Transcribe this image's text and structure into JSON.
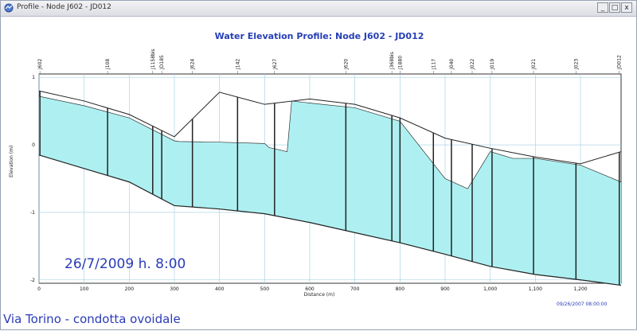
{
  "window": {
    "title": "Profile - Node J602 - JD012",
    "buttons": [
      "_",
      "□",
      "x"
    ]
  },
  "chart_data": {
    "type": "area",
    "title": "Water Elevation Profile:  Node J602 - JD012",
    "xlabel": "Distance (m)",
    "ylabel": "Elevation (m)",
    "xlim": [
      0,
      1290
    ],
    "ylim": [
      -2.05,
      1.05
    ],
    "grid": true,
    "x_ticks": [
      0,
      100,
      200,
      300,
      400,
      500,
      600,
      700,
      800,
      900,
      1000,
      1100,
      1200
    ],
    "x_tick_labels": [
      "0",
      "100",
      "200",
      "300",
      "400",
      "500",
      "600",
      "700",
      "800",
      "900",
      "1,000",
      "1,100",
      "1,200"
    ],
    "y_ticks": [
      1,
      0,
      -1,
      -2
    ],
    "y_tick_labels": [
      "1",
      "0",
      "-1",
      "-2"
    ],
    "nodes": [
      {
        "name": "J602",
        "x": 2
      },
      {
        "name": "J108",
        "x": 152
      },
      {
        "name": "J1158bis",
        "x": 252
      },
      {
        "name": "JD185",
        "x": 272
      },
      {
        "name": "J624",
        "x": 340
      },
      {
        "name": "J142",
        "x": 440
      },
      {
        "name": "J627",
        "x": 522
      },
      {
        "name": "J620",
        "x": 680
      },
      {
        "name": "J368bis",
        "x": 782
      },
      {
        "name": "J1880",
        "x": 800
      },
      {
        "name": "J117",
        "x": 874
      },
      {
        "name": "J040",
        "x": 914
      },
      {
        "name": "J022",
        "x": 960
      },
      {
        "name": "J019",
        "x": 1004
      },
      {
        "name": "J021",
        "x": 1096
      },
      {
        "name": "J023",
        "x": 1190
      },
      {
        "name": "JD012",
        "x": 1286
      }
    ],
    "series": [
      {
        "name": "",
        "role": "invert",
        "x": [
          0,
          100,
          200,
          300,
          400,
          500,
          600,
          700,
          800,
          900,
          1000,
          1100,
          1200,
          1290
        ],
        "y": [
          -0.15,
          -0.35,
          -0.55,
          -0.9,
          -0.95,
          -1.02,
          -1.15,
          -1.3,
          -1.45,
          -1.62,
          -1.8,
          -1.92,
          -2.0,
          -2.08
        ]
      },
      {
        "name": "",
        "role": "water",
        "x": [
          0,
          100,
          200,
          300,
          310,
          400,
          500,
          510,
          550,
          560,
          600,
          700,
          800,
          900,
          950,
          1000,
          1050,
          1100,
          1200,
          1290
        ],
        "y": [
          0.72,
          0.58,
          0.4,
          0.06,
          0.05,
          0.04,
          0.02,
          -0.04,
          -0.1,
          0.65,
          0.62,
          0.55,
          0.35,
          -0.5,
          -0.65,
          -0.1,
          -0.2,
          -0.2,
          -0.3,
          -0.55
        ]
      },
      {
        "name": "",
        "role": "crown",
        "x": [
          0,
          100,
          200,
          300,
          400,
          500,
          600,
          700,
          800,
          900,
          1000,
          1100,
          1200,
          1290
        ],
        "y": [
          0.8,
          0.65,
          0.45,
          0.12,
          0.78,
          0.6,
          0.68,
          0.6,
          0.4,
          0.1,
          -0.05,
          -0.18,
          -0.28,
          -0.1
        ]
      }
    ]
  },
  "overlay": {
    "datetime_stamp": "26/7/2009 h. 8:00",
    "caption": "Via Torino - condotta ovoidale",
    "timestamp": "09/26/2007 08:00:00"
  }
}
